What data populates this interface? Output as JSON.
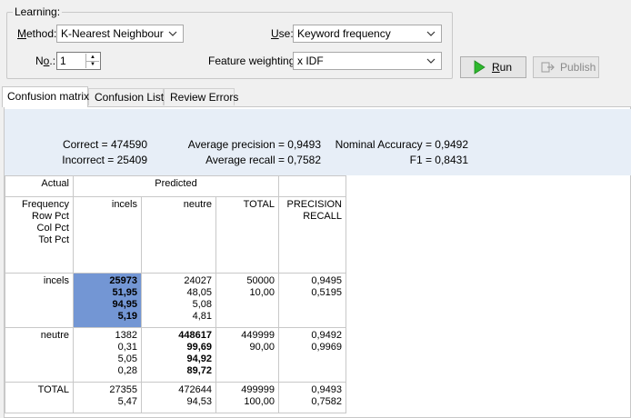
{
  "learning": {
    "legend": "Learning:",
    "method_label": "Method:",
    "method_value": "K-Nearest Neighbour",
    "use_label": "Use:",
    "use_value": "Keyword frequency",
    "no_label": "No.:",
    "no_value": "1",
    "fw_label": "Feature weighting:",
    "fw_value": "x IDF"
  },
  "buttons": {
    "run": "Run",
    "publish": "Publish"
  },
  "tabs": [
    {
      "label": "Confusion matrix"
    },
    {
      "label": "Confusion List"
    },
    {
      "label": "Review Errors"
    }
  ],
  "stats": {
    "correct": "Correct = 474590",
    "incorrect": "Incorrect = 25409",
    "avg_precision": "Average precision = 0,9493",
    "avg_recall": "Average recall = 0,7582",
    "nominal_accuracy": "Nominal Accuracy = 0,9492",
    "f1": "F1 = 0,8431"
  },
  "matrix": {
    "actual": "Actual",
    "predicted": "Predicted",
    "row_header_lines": [
      "Frequency",
      "Row Pct",
      "Col Pct",
      "Tot Pct"
    ],
    "col_incels": "incels",
    "col_neutre": "neutre",
    "col_total": "TOTAL",
    "col_pr": [
      "PRECISION",
      "RECALL"
    ],
    "rows": [
      {
        "label": "incels",
        "incels": [
          "25973",
          "51,95",
          "94,95",
          "5,19"
        ],
        "neutre": [
          "24027",
          "48,05",
          "5,08",
          "4,81"
        ],
        "total": [
          "50000",
          "10,00"
        ],
        "pr": [
          "0,9495",
          "0,5195"
        ]
      },
      {
        "label": "neutre",
        "incels": [
          "1382",
          "0,31",
          "5,05",
          "0,28"
        ],
        "neutre": [
          "448617",
          "99,69",
          "94,92",
          "89,72"
        ],
        "total": [
          "449999",
          "90,00"
        ],
        "pr": [
          "0,9492",
          "0,9969"
        ]
      },
      {
        "label": "TOTAL",
        "incels": [
          "27355",
          "5,47"
        ],
        "neutre": [
          "472644",
          "94,53"
        ],
        "total": [
          "499999",
          "100,00"
        ],
        "pr": [
          "0,9493",
          "0,7582"
        ]
      }
    ]
  },
  "colors": {
    "highlight": "#7396d4",
    "stats_bg": "#e7eef7",
    "run_icon": "#2eb82e"
  }
}
